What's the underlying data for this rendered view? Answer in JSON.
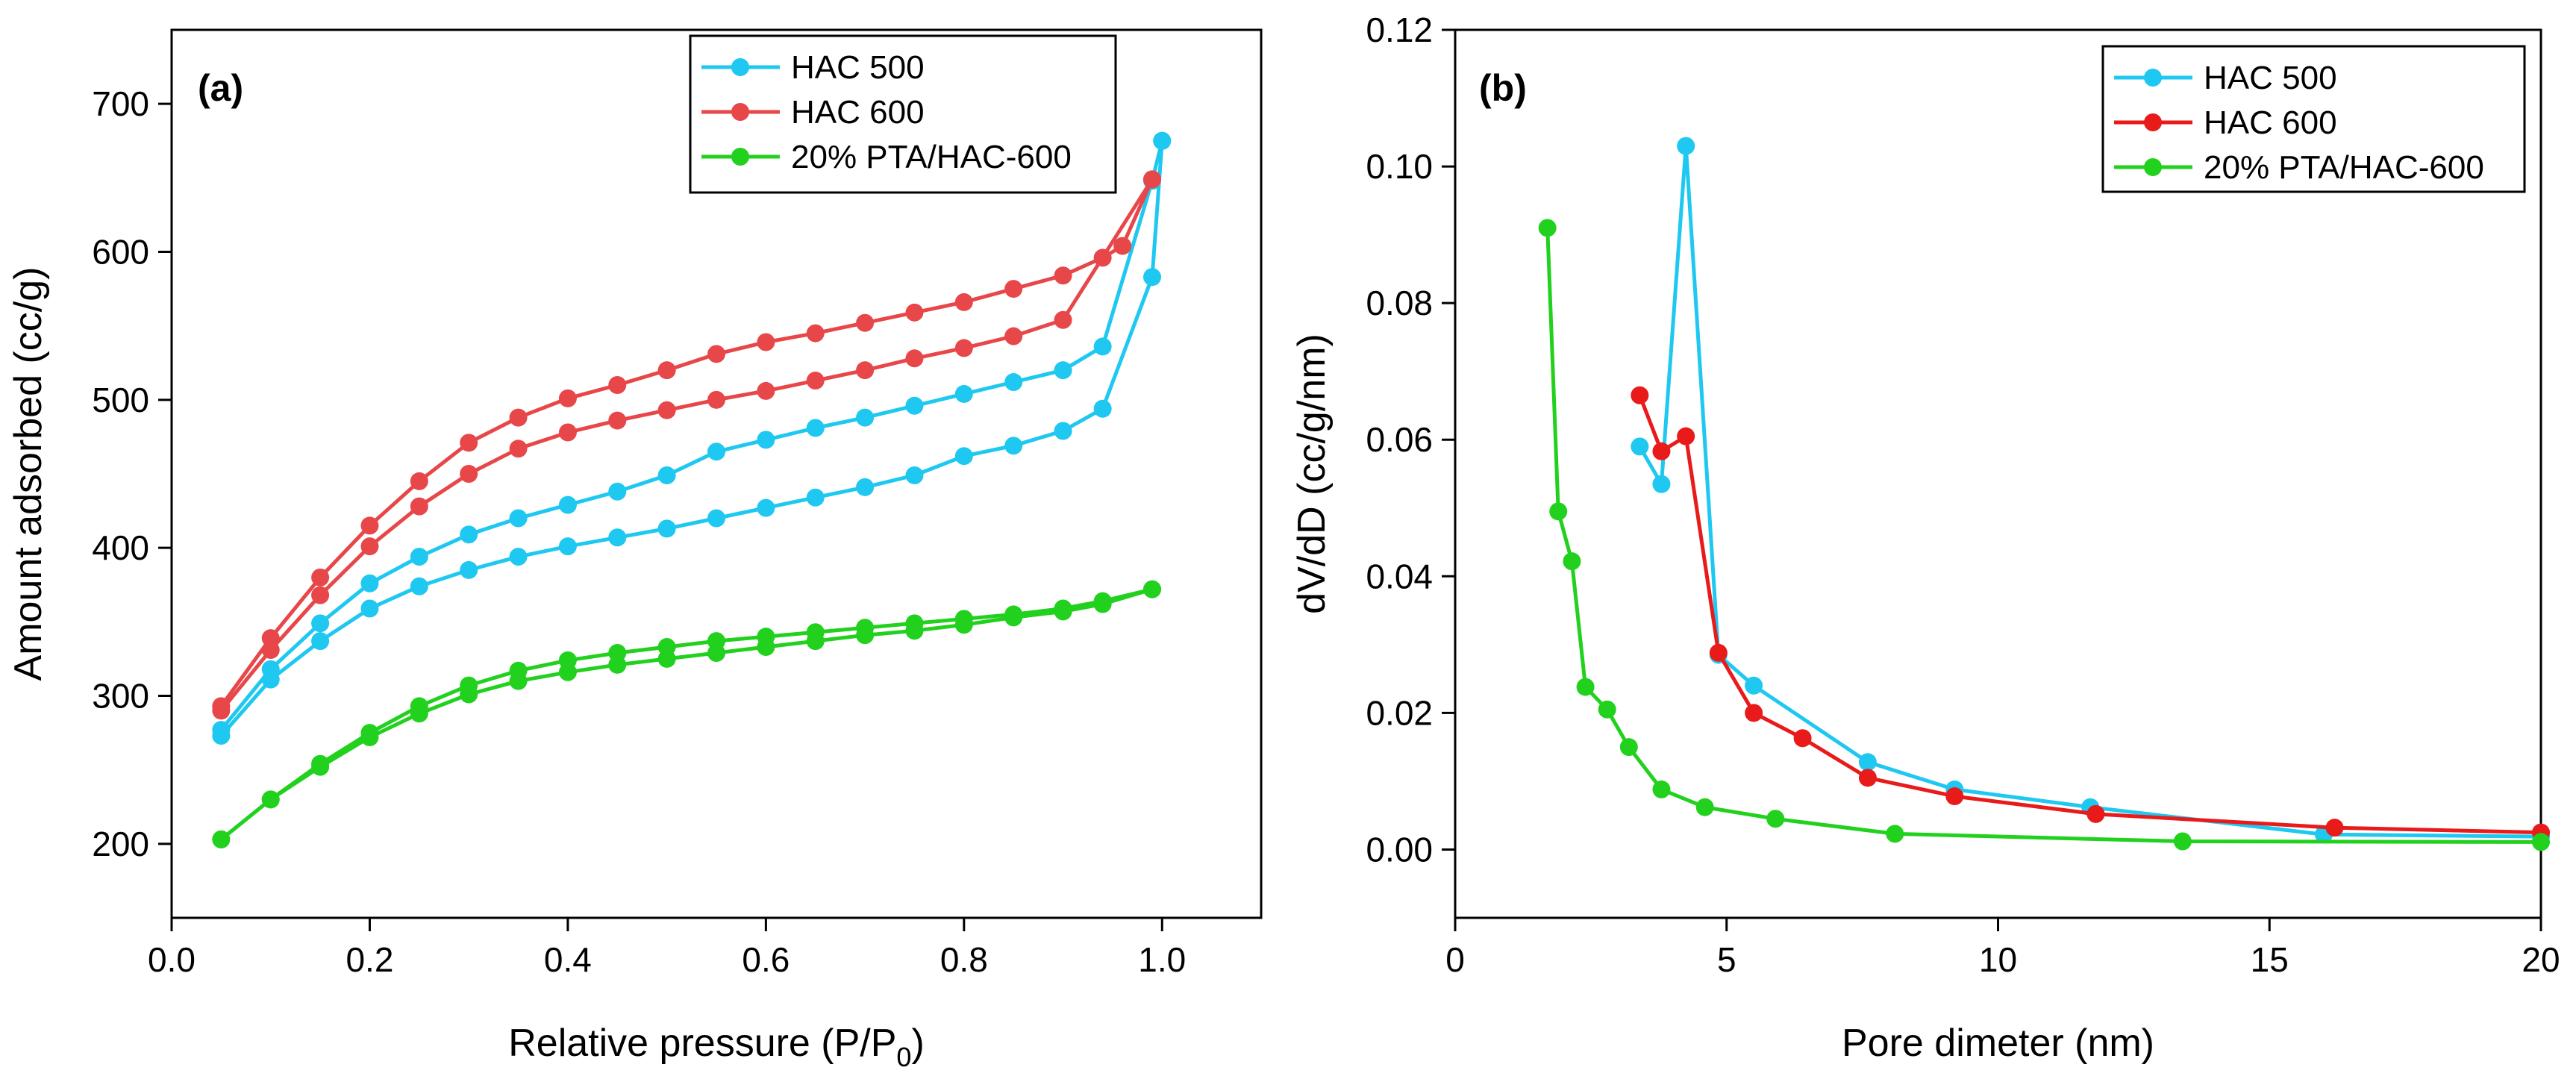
{
  "chart_data": [
    {
      "panel_label": "(a)",
      "type": "line",
      "xlabel": "Relative pressure (P/P",
      "xlabel_sub": "0",
      "xlabel_close": ")",
      "ylabel": "Amount adsorbed (cc/g)",
      "xlim": [
        0.0,
        1.1
      ],
      "ylim": [
        150,
        750
      ],
      "xticks": [
        0.0,
        0.2,
        0.4,
        0.6,
        0.8,
        1.0
      ],
      "xtick_labels": [
        "0.0",
        "0.2",
        "0.4",
        "0.6",
        "0.8",
        "1.0"
      ],
      "yticks": [
        200,
        300,
        400,
        500,
        600,
        700
      ],
      "ytick_labels": [
        "200",
        "300",
        "400",
        "500",
        "600",
        "700"
      ],
      "legend_position": "top-right",
      "series": [
        {
          "name": "HAC 500",
          "color": "#1ec8f0",
          "segments": [
            {
              "x": [
                0.05,
                0.1,
                0.15,
                0.2,
                0.25,
                0.3,
                0.35,
                0.4,
                0.45,
                0.5,
                0.55,
                0.6,
                0.65,
                0.7,
                0.75,
                0.8,
                0.85,
                0.9,
                0.94,
                0.99,
                1.0
              ],
              "y": [
                273,
                311,
                337,
                359,
                374,
                385,
                394,
                401,
                407,
                413,
                420,
                427,
                434,
                441,
                449,
                462,
                469,
                479,
                494,
                583,
                675
              ]
            },
            {
              "x": [
                1.0,
                0.99,
                0.94,
                0.9,
                0.85,
                0.8,
                0.75,
                0.7,
                0.65,
                0.6,
                0.55,
                0.5,
                0.45,
                0.4,
                0.35,
                0.3,
                0.25,
                0.2,
                0.15,
                0.1,
                0.05
              ],
              "y": [
                675,
                648,
                536,
                520,
                512,
                504,
                496,
                488,
                481,
                473,
                465,
                449,
                438,
                429,
                420,
                409,
                394,
                376,
                349,
                318,
                277
              ]
            }
          ]
        },
        {
          "name": "HAC 600",
          "color": "#e8474a",
          "segments": [
            {
              "x": [
                0.05,
                0.1,
                0.15,
                0.2,
                0.25,
                0.3,
                0.35,
                0.4,
                0.45,
                0.5,
                0.55,
                0.6,
                0.65,
                0.7,
                0.75,
                0.8,
                0.85,
                0.9,
                0.99
              ],
              "y": [
                290,
                331,
                368,
                401,
                428,
                450,
                467,
                478,
                486,
                493,
                500,
                506,
                513,
                520,
                528,
                535,
                543,
                554,
                649
              ]
            },
            {
              "x": [
                0.99,
                0.96,
                0.94,
                0.9,
                0.85,
                0.8,
                0.75,
                0.7,
                0.65,
                0.6,
                0.55,
                0.5,
                0.45,
                0.4,
                0.35,
                0.3,
                0.25,
                0.2,
                0.15,
                0.1,
                0.05
              ],
              "y": [
                649,
                604,
                596,
                584,
                575,
                566,
                559,
                552,
                545,
                539,
                531,
                520,
                510,
                501,
                488,
                471,
                445,
                415,
                380,
                339,
                293
              ]
            }
          ]
        },
        {
          "name": "20% PTA/HAC-600",
          "color": "#22d11e",
          "segments": [
            {
              "x": [
                0.05,
                0.1,
                0.15,
                0.2,
                0.25,
                0.3,
                0.35,
                0.4,
                0.45,
                0.5,
                0.55,
                0.6,
                0.65,
                0.7,
                0.75,
                0.8,
                0.85,
                0.9,
                0.94,
                0.99
              ],
              "y": [
                203,
                230,
                252,
                272,
                288,
                301,
                310,
                316,
                321,
                325,
                329,
                333,
                337,
                341,
                344,
                348,
                353,
                357,
                362,
                372
              ]
            },
            {
              "x": [
                0.99,
                0.94,
                0.9,
                0.85,
                0.8,
                0.75,
                0.7,
                0.65,
                0.6,
                0.55,
                0.5,
                0.45,
                0.4,
                0.35,
                0.3,
                0.25,
                0.2,
                0.15,
                0.1,
                0.05
              ],
              "y": [
                372,
                364,
                359,
                355,
                352,
                349,
                346,
                343,
                340,
                337,
                333,
                329,
                324,
                317,
                307,
                293,
                275,
                254,
                230,
                203
              ]
            }
          ]
        }
      ]
    },
    {
      "panel_label": "(b)",
      "type": "line",
      "xlabel": "Pore dimeter (nm)",
      "ylabel": "dV/dD (cc/g/nm)",
      "xlim": [
        0,
        20
      ],
      "ylim": [
        -0.01,
        0.12
      ],
      "xticks": [
        0,
        5,
        10,
        15,
        20
      ],
      "xtick_labels": [
        "0",
        "5",
        "10",
        "15",
        "20"
      ],
      "yticks": [
        0.0,
        0.02,
        0.04,
        0.06,
        0.08,
        0.1,
        0.12
      ],
      "ytick_labels": [
        "0.00",
        "0.02",
        "0.04",
        "0.06",
        "0.08",
        "0.10",
        "0.12"
      ],
      "legend_position": "top-right",
      "series": [
        {
          "name": "HAC 500",
          "color": "#1ec8f0",
          "x": [
            3.4,
            3.8,
            4.25,
            4.85,
            5.5,
            7.6,
            9.2,
            11.7,
            16.0,
            20.0
          ],
          "y": [
            0.059,
            0.0535,
            0.103,
            0.0285,
            0.024,
            0.0128,
            0.0088,
            0.0062,
            0.0022,
            0.0019
          ]
        },
        {
          "name": "HAC 600",
          "color": "#e81a1a",
          "x": [
            3.4,
            3.8,
            4.25,
            4.85,
            5.5,
            6.4,
            7.6,
            9.2,
            11.8,
            16.2,
            20.0
          ],
          "y": [
            0.0665,
            0.0583,
            0.0605,
            0.0288,
            0.02,
            0.0163,
            0.0105,
            0.0078,
            0.0052,
            0.0032,
            0.0025
          ]
        },
        {
          "name": "20% PTA/HAC-600",
          "color": "#22d11e",
          "x": [
            1.7,
            1.9,
            2.15,
            2.4,
            2.8,
            3.2,
            3.8,
            4.6,
            5.9,
            8.1,
            13.4,
            20.0
          ],
          "y": [
            0.091,
            0.0495,
            0.0422,
            0.0238,
            0.0205,
            0.015,
            0.0088,
            0.0062,
            0.0045,
            0.0023,
            0.0012,
            0.0011
          ]
        }
      ]
    }
  ]
}
